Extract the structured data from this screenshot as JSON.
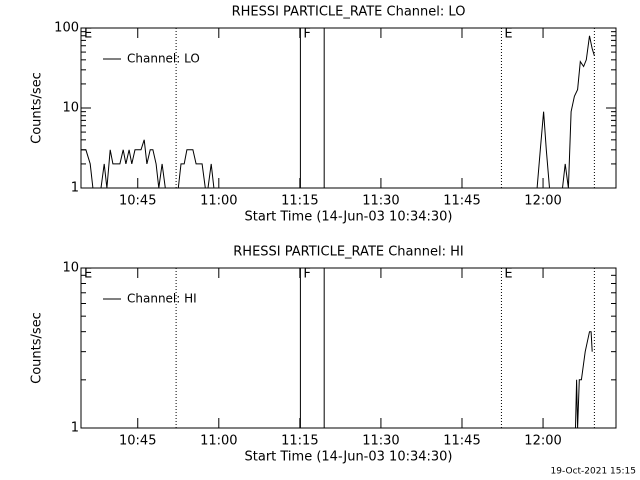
{
  "chart_data": [
    {
      "type": "line",
      "title": "RHESSI PARTICLE_RATE Channel: LO",
      "ylabel": "Counts/sec",
      "xlabel": "Start Time (14-Jun-03 10:34:30)",
      "x": [
        0,
        0.9,
        1.7,
        2.2,
        3.7,
        4.3,
        4.8,
        5.4,
        5.9,
        6.5,
        7.2,
        7.8,
        8.3,
        8.9,
        9.4,
        10,
        10.6,
        11.1,
        11.7,
        12.2,
        12.8,
        13.3,
        13.9,
        14.4,
        15,
        15.6,
        18,
        18.5,
        19.1,
        19.6,
        20.2,
        20.7,
        21.3,
        21.9,
        22.4,
        23,
        23.5,
        24.1,
        24.6,
        84.4,
        85,
        85.6,
        86.1,
        86.7,
        89.1,
        89.6,
        90.2,
        90.7,
        91.3,
        91.9,
        92.4,
        93,
        93.5,
        94.1,
        94.6,
        95
      ],
      "series": [
        {
          "name": "Channel: LO",
          "color": "#000000",
          "values": [
            3,
            3,
            2,
            1,
            1,
            2,
            1,
            3,
            2,
            2,
            2,
            3,
            2,
            3,
            2,
            3,
            3,
            3,
            4,
            2,
            3,
            3,
            2,
            1,
            2,
            1,
            1,
            2,
            2,
            3,
            3,
            3,
            2,
            2,
            2,
            1,
            1,
            2,
            1,
            1,
            3,
            9,
            3,
            1,
            1,
            2,
            1,
            9,
            14,
            17,
            38,
            33,
            40,
            80,
            55,
            45
          ]
        }
      ],
      "xlim": [
        0,
        99
      ],
      "ylim": [
        1,
        100
      ],
      "log_y": true,
      "xticks": [
        {
          "value": 10.5,
          "label": "10:45"
        },
        {
          "value": 25.5,
          "label": "11:00"
        },
        {
          "value": 40.5,
          "label": "11:15"
        },
        {
          "value": 55.5,
          "label": "11:30"
        },
        {
          "value": 70.5,
          "label": "11:45"
        },
        {
          "value": 85.5,
          "label": "12:00"
        }
      ],
      "yticks": [
        1,
        10,
        100
      ],
      "markers": [
        {
          "x": 0,
          "label": "E",
          "style": "dotted"
        },
        {
          "x": 17.6,
          "style": "dotted"
        },
        {
          "x": 40.6,
          "label": "F",
          "style": "solid"
        },
        {
          "x": 45,
          "style": "solid"
        },
        {
          "x": 77.8,
          "label": "E",
          "style": "dotted"
        },
        {
          "x": 95,
          "style": "dotted"
        }
      ]
    },
    {
      "type": "line",
      "title": "RHESSI PARTICLE_RATE Channel: HI",
      "ylabel": "Counts/sec",
      "xlabel": "Start Time (14-Jun-03 10:34:30)",
      "x": [
        0,
        91.5,
        91.7,
        91.9,
        92.2,
        92.6,
        93.3,
        94.1,
        94.4,
        94.6
      ],
      "series": [
        {
          "name": "Channel: HI",
          "color": "#000000",
          "values": [
            1,
            1,
            2,
            1,
            2,
            2,
            3,
            4,
            4,
            3
          ]
        }
      ],
      "xlim": [
        0,
        99
      ],
      "ylim": [
        1,
        10
      ],
      "log_y": true,
      "xticks": [
        {
          "value": 10.5,
          "label": "10:45"
        },
        {
          "value": 25.5,
          "label": "11:00"
        },
        {
          "value": 40.5,
          "label": "11:15"
        },
        {
          "value": 55.5,
          "label": "11:30"
        },
        {
          "value": 70.5,
          "label": "11:45"
        },
        {
          "value": 85.5,
          "label": "12:00"
        }
      ],
      "yticks": [
        1,
        10
      ],
      "markers": [
        {
          "x": 0,
          "label": "E",
          "style": "dotted"
        },
        {
          "x": 17.6,
          "style": "dotted"
        },
        {
          "x": 40.6,
          "label": "F",
          "style": "solid"
        },
        {
          "x": 45,
          "style": "solid"
        },
        {
          "x": 77.8,
          "label": "E",
          "style": "dotted"
        },
        {
          "x": 95,
          "style": "dotted"
        }
      ]
    }
  ],
  "footer": "19-Oct-2021 15:15"
}
